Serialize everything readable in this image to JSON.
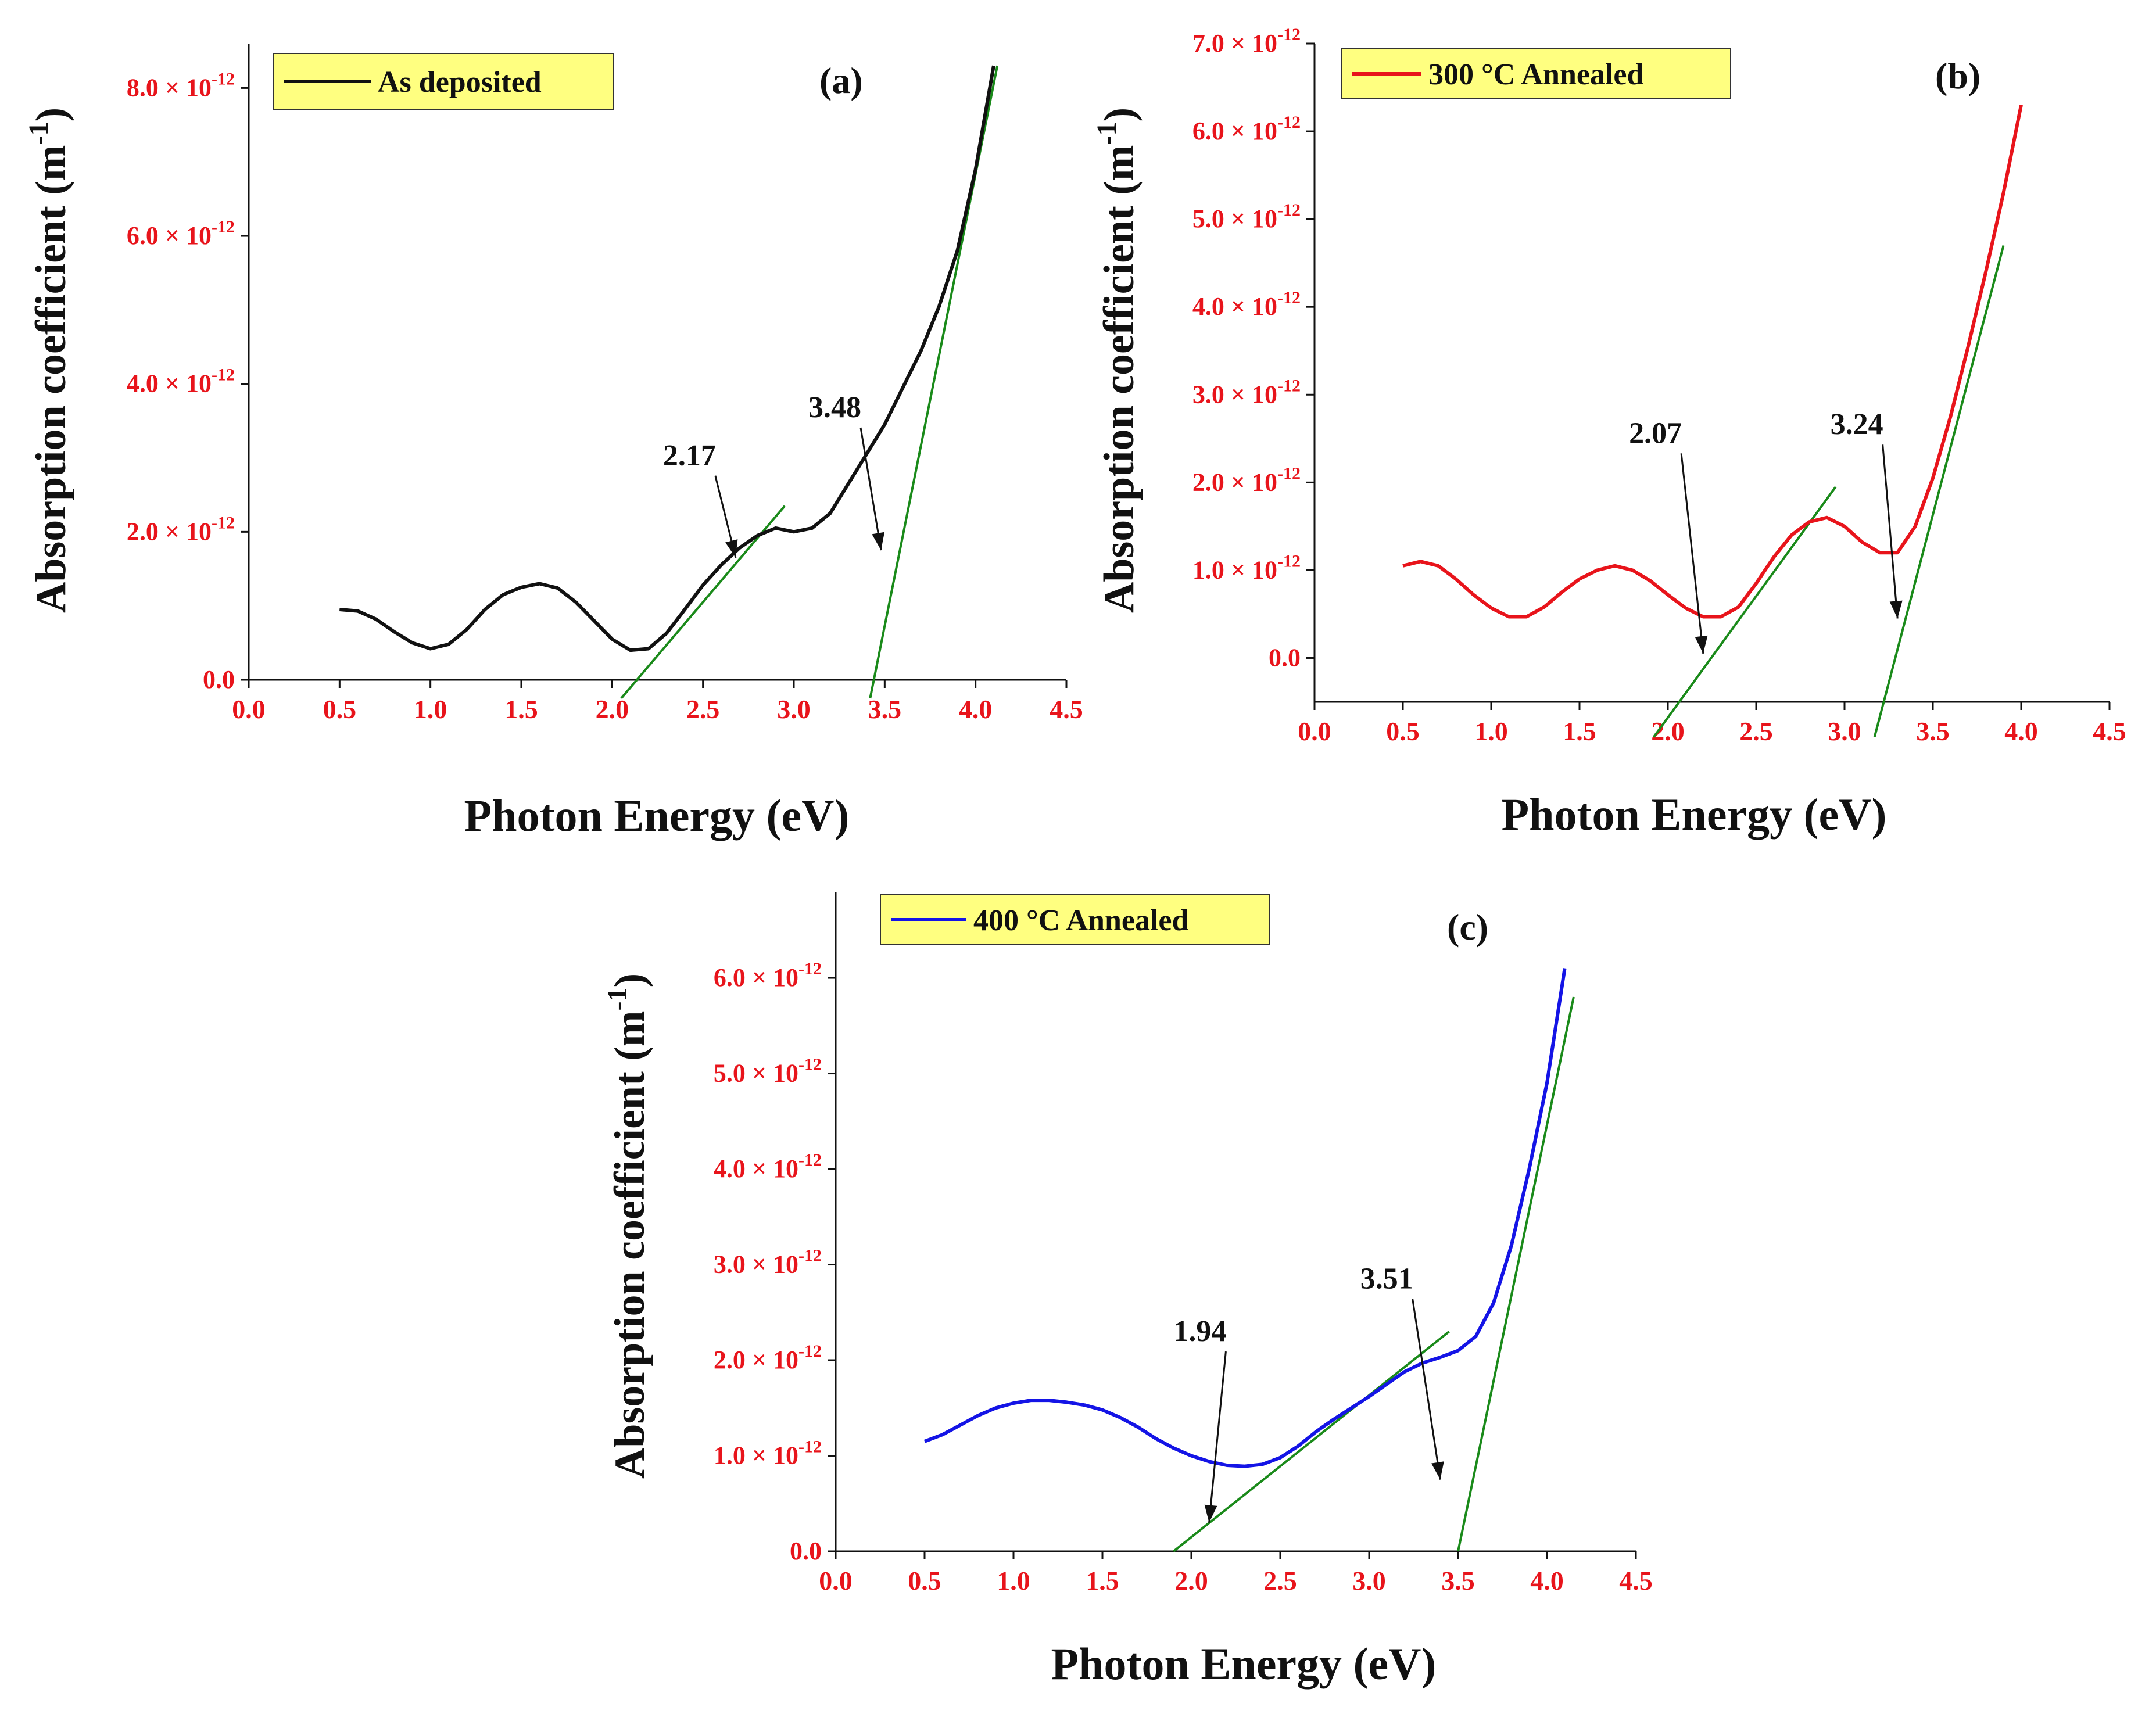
{
  "figure": {
    "description_free": true
  },
  "chart_data": [
    {
      "type": "line",
      "panel_label": "(a)",
      "legend_label": "As deposited",
      "series_color": "#111111",
      "tangent_color": "#1a8a1a",
      "tick_color": "#e8141b",
      "legend_bg": "#ffff80",
      "xlabel": "Photon Energy (eV)",
      "ylabel": "Absorption coefficient (m",
      "ylabel_sup": "-1",
      "ylabel_close": ")",
      "xlim": [
        0.0,
        4.5
      ],
      "ylim": [
        0.0,
        8.6
      ],
      "x_ticks": [
        0.0,
        0.5,
        1.0,
        1.5,
        2.0,
        2.5,
        3.0,
        3.5,
        4.0,
        4.5
      ],
      "x_tick_labels": [
        "0.0",
        "0.5",
        "1.0",
        "1.5",
        "2.0",
        "2.5",
        "3.0",
        "3.5",
        "4.0",
        "4.5"
      ],
      "y_ticks": [
        0,
        2,
        4,
        6,
        8
      ],
      "y_tick_labels": [
        "0.0",
        "2.0 × 10",
        "4.0 × 10",
        "6.0 × 10",
        "8.0 × 10"
      ],
      "y_tick_exp": "-12",
      "series": [
        {
          "name": "As deposited",
          "x": [
            0.5,
            0.6,
            0.7,
            0.8,
            0.9,
            1.0,
            1.1,
            1.2,
            1.3,
            1.4,
            1.5,
            1.6,
            1.7,
            1.8,
            1.9,
            2.0,
            2.1,
            2.2,
            2.3,
            2.4,
            2.5,
            2.6,
            2.7,
            2.8,
            2.9,
            3.0,
            3.1,
            3.2,
            3.3,
            3.4,
            3.5,
            3.6,
            3.7,
            3.8,
            3.9,
            4.0,
            4.05,
            4.1
          ],
          "y": [
            0.95,
            0.93,
            0.82,
            0.65,
            0.5,
            0.42,
            0.48,
            0.68,
            0.95,
            1.15,
            1.25,
            1.3,
            1.24,
            1.05,
            0.8,
            0.55,
            0.4,
            0.42,
            0.63,
            0.95,
            1.28,
            1.55,
            1.78,
            1.95,
            2.05,
            2.0,
            2.05,
            2.25,
            2.65,
            3.05,
            3.45,
            3.95,
            4.45,
            5.05,
            5.8,
            6.9,
            7.6,
            8.3
          ]
        }
      ],
      "tangents": [
        {
          "x": [
            2.05,
            2.95
          ],
          "y": [
            -0.25,
            2.35
          ]
        },
        {
          "x": [
            3.42,
            4.12
          ],
          "y": [
            -0.25,
            8.3
          ]
        }
      ],
      "annotations": [
        {
          "text": "2.17",
          "value": 2.17,
          "text_x": 2.28,
          "text_y": 2.9,
          "arrow_to_x": 2.68,
          "arrow_to_y": 1.65
        },
        {
          "text": "3.48",
          "value": 3.48,
          "text_x": 3.08,
          "text_y": 3.55,
          "arrow_to_x": 3.48,
          "arrow_to_y": 1.75
        }
      ]
    },
    {
      "type": "line",
      "panel_label": "(b)",
      "legend_label": "300 °C Annealed",
      "series_color": "#e8141b",
      "tangent_color": "#1a8a1a",
      "tick_color": "#e8141b",
      "legend_bg": "#ffff80",
      "xlabel": "Photon Energy (eV)",
      "ylabel": "Absorption coefficient (m",
      "ylabel_sup": "-1",
      "ylabel_close": ")",
      "xlim": [
        0.0,
        4.5
      ],
      "ylim": [
        -0.5,
        7.0
      ],
      "x_ticks": [
        0.0,
        0.5,
        1.0,
        1.5,
        2.0,
        2.5,
        3.0,
        3.5,
        4.0,
        4.5
      ],
      "x_tick_labels": [
        "0.0",
        "0.5",
        "1.0",
        "1.5",
        "2.0",
        "2.5",
        "3.0",
        "3.5",
        "4.0",
        "4.5"
      ],
      "y_ticks": [
        0,
        1,
        2,
        3,
        4,
        5,
        6,
        7
      ],
      "y_tick_labels": [
        "0.0",
        "1.0 × 10",
        "2.0 × 10",
        "3.0 × 10",
        "4.0 × 10",
        "5.0 × 10",
        "6.0 × 10",
        "7.0 × 10"
      ],
      "y_tick_exp": "-12",
      "series": [
        {
          "name": "300 °C Annealed",
          "x": [
            0.5,
            0.6,
            0.7,
            0.8,
            0.9,
            1.0,
            1.1,
            1.2,
            1.3,
            1.4,
            1.5,
            1.6,
            1.7,
            1.8,
            1.9,
            2.0,
            2.1,
            2.2,
            2.3,
            2.4,
            2.5,
            2.6,
            2.7,
            2.8,
            2.9,
            3.0,
            3.1,
            3.2,
            3.3,
            3.4,
            3.5,
            3.6,
            3.7,
            3.8,
            3.9,
            4.0
          ],
          "y": [
            1.05,
            1.1,
            1.05,
            0.9,
            0.72,
            0.57,
            0.47,
            0.47,
            0.58,
            0.75,
            0.9,
            1.0,
            1.05,
            1.0,
            0.88,
            0.72,
            0.57,
            0.47,
            0.47,
            0.58,
            0.85,
            1.15,
            1.4,
            1.55,
            1.6,
            1.5,
            1.32,
            1.2,
            1.2,
            1.5,
            2.05,
            2.75,
            3.55,
            4.4,
            5.3,
            6.3
          ]
        }
      ],
      "tangents": [
        {
          "x": [
            1.92,
            2.95
          ],
          "y": [
            -0.9,
            1.95
          ]
        },
        {
          "x": [
            3.17,
            3.9
          ],
          "y": [
            -0.9,
            4.7
          ]
        }
      ],
      "annotations": [
        {
          "text": "2.07",
          "value": 2.07,
          "text_x": 1.78,
          "text_y": 2.45,
          "arrow_to_x": 2.2,
          "arrow_to_y": 0.05
        },
        {
          "text": "3.24",
          "value": 3.24,
          "text_x": 2.92,
          "text_y": 2.55,
          "arrow_to_x": 3.3,
          "arrow_to_y": 0.45
        }
      ]
    },
    {
      "type": "line",
      "panel_label": "(c)",
      "legend_label": "400 °C Annealed",
      "series_color": "#1414e6",
      "tangent_color": "#1a8a1a",
      "tick_color": "#e8141b",
      "legend_bg": "#ffff80",
      "xlabel": "Photon Energy (eV)",
      "ylabel": "Absorption coefficient (m",
      "ylabel_sup": "-1",
      "ylabel_close": ")",
      "xlim": [
        0.0,
        4.5
      ],
      "ylim": [
        0.0,
        6.9
      ],
      "x_ticks": [
        0.0,
        0.5,
        1.0,
        1.5,
        2.0,
        2.5,
        3.0,
        3.5,
        4.0,
        4.5
      ],
      "x_tick_labels": [
        "0.0",
        "0.5",
        "1.0",
        "1.5",
        "2.0",
        "2.5",
        "3.0",
        "3.5",
        "4.0",
        "4.5"
      ],
      "y_ticks": [
        0,
        1,
        2,
        3,
        4,
        5,
        6
      ],
      "y_tick_labels": [
        "0.0",
        "1.0 × 10",
        "2.0 × 10",
        "3.0 × 10",
        "4.0 × 10",
        "5.0 × 10",
        "6.0 × 10"
      ],
      "y_tick_exp": "-12",
      "series": [
        {
          "name": "400 °C Annealed",
          "x": [
            0.5,
            0.6,
            0.7,
            0.8,
            0.9,
            1.0,
            1.1,
            1.2,
            1.3,
            1.4,
            1.5,
            1.6,
            1.7,
            1.8,
            1.9,
            2.0,
            2.1,
            2.2,
            2.3,
            2.4,
            2.5,
            2.6,
            2.7,
            2.8,
            2.9,
            3.0,
            3.1,
            3.2,
            3.3,
            3.4,
            3.5,
            3.6,
            3.7,
            3.8,
            3.9,
            4.0,
            4.05,
            4.1
          ],
          "y": [
            1.15,
            1.22,
            1.32,
            1.42,
            1.5,
            1.55,
            1.58,
            1.58,
            1.56,
            1.53,
            1.48,
            1.4,
            1.3,
            1.18,
            1.08,
            1.0,
            0.94,
            0.9,
            0.89,
            0.91,
            0.98,
            1.1,
            1.25,
            1.38,
            1.5,
            1.62,
            1.75,
            1.88,
            1.97,
            2.03,
            2.1,
            2.25,
            2.6,
            3.2,
            4.0,
            4.9,
            5.5,
            6.1
          ]
        }
      ],
      "tangents": [
        {
          "x": [
            1.9,
            3.45
          ],
          "y": [
            0.0,
            2.3
          ]
        },
        {
          "x": [
            3.5,
            4.15
          ],
          "y": [
            0.0,
            5.8
          ]
        }
      ],
      "annotations": [
        {
          "text": "1.94",
          "value": 1.94,
          "text_x": 1.9,
          "text_y": 2.2,
          "arrow_to_x": 2.1,
          "arrow_to_y": 0.3
        },
        {
          "text": "3.51",
          "value": 3.51,
          "text_x": 2.95,
          "text_y": 2.75,
          "arrow_to_x": 3.4,
          "arrow_to_y": 0.75
        }
      ]
    }
  ]
}
